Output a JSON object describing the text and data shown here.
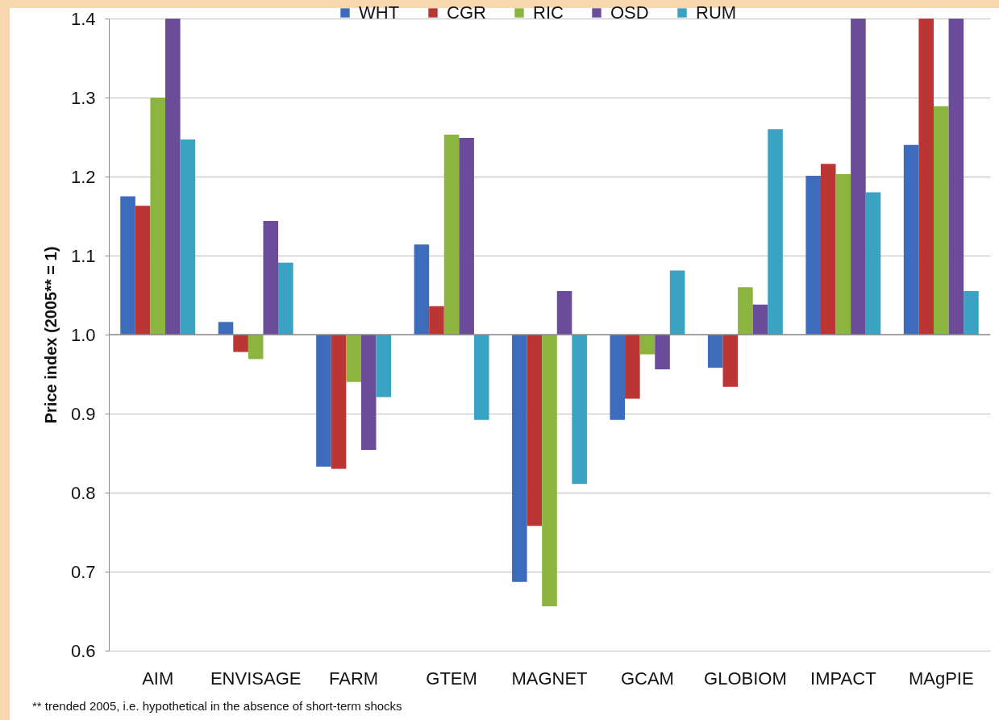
{
  "chart_data": {
    "type": "bar",
    "ylabel": "Price index (2005** = 1)",
    "annotations": [
      "** trended 2005, i.e. hypothetical in the absence of short-term shocks"
    ],
    "categories": [
      "AIM",
      "ENVISAGE",
      "FARM",
      "GTEM",
      "MAGNET",
      "GCAM",
      "GLOBIOM",
      "IMPACT",
      "MAgPIE"
    ],
    "series": [
      {
        "name": "WHT",
        "color": "#3d6cbc",
        "base": [
          1,
          1,
          1,
          1,
          1,
          1,
          1,
          1,
          1
        ],
        "values": [
          0.175,
          0.016,
          -0.167,
          0.114,
          -0.313,
          -0.108,
          -0.042,
          0.201,
          0.24
        ]
      },
      {
        "name": "CGR",
        "color": "#bb3535",
        "base": [
          1,
          1,
          1,
          1,
          1,
          1,
          1,
          1,
          1
        ],
        "values": [
          0.163,
          -0.022,
          -0.17,
          0.036,
          -0.242,
          -0.081,
          -0.066,
          0.216,
          0.4
        ]
      },
      {
        "name": "RIC",
        "color": "#8bb53f",
        "base": [
          1,
          1,
          1,
          1,
          1,
          1,
          1,
          1,
          1
        ],
        "values": [
          0.3,
          -0.031,
          -0.06,
          0.253,
          -0.344,
          -0.025,
          0.06,
          0.203,
          0.289
        ]
      },
      {
        "name": "OSD",
        "color": "#6a4c9b",
        "base": [
          1,
          1,
          1,
          1,
          1,
          1,
          1,
          1,
          1
        ],
        "values": [
          0.4,
          0.144,
          -0.146,
          0.249,
          0.055,
          -0.044,
          0.038,
          0.4,
          0.4
        ]
      },
      {
        "name": "RUM",
        "color": "#3aa2c2",
        "base": [
          1,
          1,
          1,
          1,
          1,
          1,
          1,
          1,
          1
        ],
        "values": [
          0.247,
          0.091,
          -0.079,
          -0.108,
          -0.189,
          0.081,
          0.26,
          0.18,
          0.055
        ]
      }
    ],
    "ylim": [
      0.6,
      1.4
    ],
    "yticks": [
      {
        "value": 0.6,
        "label": "0.6"
      },
      0.7,
      0.8,
      0.9,
      {
        "value": 1,
        "label": "1.0"
      },
      1.1,
      1.2,
      1.3,
      1.4
    ],
    "ref_lines": [
      {
        "axis": "y",
        "value": 1,
        "color": "#8c8c8c"
      }
    ],
    "grid": "y",
    "legend": "top"
  }
}
